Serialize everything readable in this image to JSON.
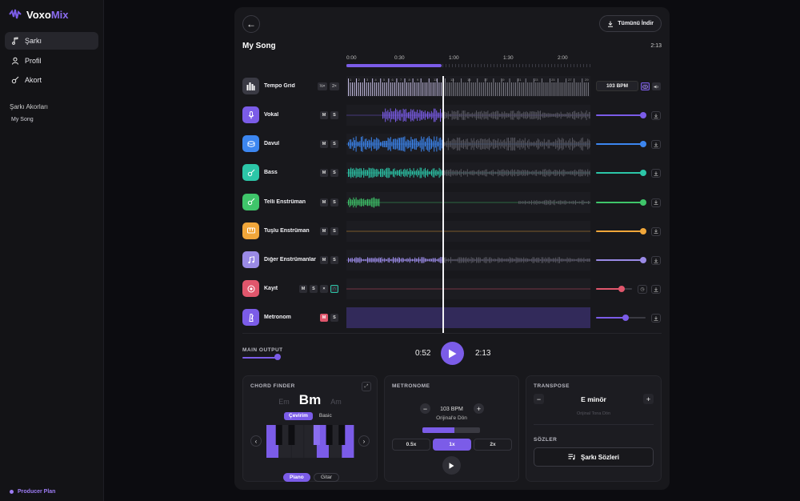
{
  "app": {
    "brand_a": "Voxo",
    "brand_b": "Mix"
  },
  "nav": [
    {
      "label": "Şarkı",
      "icon": "music-note-icon",
      "active": true
    },
    {
      "label": "Profil",
      "icon": "user-icon",
      "active": false
    },
    {
      "label": "Akort",
      "icon": "guitar-icon",
      "active": false
    }
  ],
  "sidebar": {
    "section_title": "Şarkı Akorları",
    "song_item": "My Song",
    "plan": "Producer Plan"
  },
  "header": {
    "download_all": "Tümünü İndir",
    "song_title": "My Song",
    "total_time": "2:13"
  },
  "timeline": {
    "marks": [
      "0:00",
      "0:30",
      "1:00",
      "1:30",
      "2:00"
    ],
    "progress": 0.39
  },
  "tempo": {
    "name": "Tempo Grid",
    "half": "½×",
    "double": "2×",
    "bpm": "103 BPM",
    "beat_numbers": [
      "1",
      "2",
      "3",
      "4",
      "5",
      "6",
      "7",
      "8",
      "9",
      "10",
      "11",
      "12",
      "13",
      "14",
      "15",
      "16",
      "17",
      "18",
      "19",
      "20",
      "21",
      "22",
      "23",
      "24",
      "25",
      "26",
      "27",
      "28",
      "29",
      "30",
      "31",
      "32",
      "33",
      "34",
      "35",
      "36",
      "37",
      "38",
      "39",
      "40",
      "41",
      "42",
      "43",
      "44",
      "45",
      "46",
      "47",
      "48",
      "49",
      "50",
      "51",
      "52",
      "53",
      "54",
      "55",
      "56",
      "57"
    ]
  },
  "tracks": [
    {
      "name": "Vokal",
      "icon": "microphone-icon",
      "color": "#7b5ce8",
      "volume": 0.95,
      "mute": "M",
      "solo": "S"
    },
    {
      "name": "Davul",
      "icon": "drum-icon",
      "color": "#3c86f0",
      "volume": 0.95,
      "mute": "M",
      "solo": "S"
    },
    {
      "name": "Bass",
      "icon": "bass-guitar-icon",
      "color": "#2cc6a8",
      "volume": 0.95,
      "mute": "M",
      "solo": "S"
    },
    {
      "name": "Telli Enstrüman",
      "icon": "guitar-icon",
      "color": "#3fc56a",
      "volume": 0.95,
      "mute": "M",
      "solo": "S"
    },
    {
      "name": "Tuşlu Enstrüman",
      "icon": "keyboard-icon",
      "color": "#f0a63a",
      "volume": 0.95,
      "mute": "M",
      "solo": "S"
    },
    {
      "name": "Diğer Enstrümanlar",
      "icon": "music-notes-icon",
      "color": "#9a8ae6",
      "volume": 0.95,
      "mute": "M",
      "solo": "S"
    },
    {
      "name": "Kayıt",
      "icon": "record-icon",
      "color": "#e0566c",
      "volume": 0.7,
      "mute": "M",
      "solo": "S"
    },
    {
      "name": "Metronom",
      "icon": "metronome-icon",
      "color": "#7b5ce8",
      "volume": 0.6,
      "mute": "M",
      "solo": "S"
    }
  ],
  "transport": {
    "main_output": "MAIN OUTPUT",
    "main_output_level": 0.8,
    "current": "0:52",
    "total": "2:13"
  },
  "chord_finder": {
    "title": "CHORD FINDER",
    "prev": "Em",
    "current": "Bm",
    "next": "Am",
    "modes": [
      "Çevirim",
      "Basic"
    ],
    "active_mode": "Çevirim",
    "instruments": [
      "Piano",
      "Gitar"
    ],
    "active_instrument": "Piano"
  },
  "metronome": {
    "title": "METRONOME",
    "bpm": "103 BPM",
    "reset": "Orijinal'e Dön",
    "rates": [
      "0.5x",
      "1x",
      "2x"
    ],
    "active_rate": "1x",
    "level": 0.55
  },
  "transpose": {
    "title": "TRANSPOSE",
    "key": "E minör",
    "original": "Orijinal Tona Dön",
    "lyrics_title": "SÖZLER",
    "lyrics_button": "Şarkı Sözleri"
  },
  "colors": {
    "accent": "#7b5ce8",
    "background": "#0c0c10",
    "panel": "#18181c"
  }
}
